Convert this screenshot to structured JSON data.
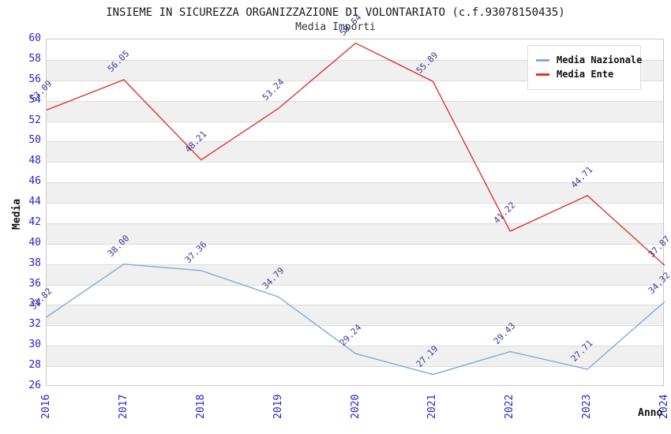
{
  "chart_data": {
    "type": "line",
    "title": "INSIEME IN SICUREZZA ORGANIZZAZIONE DI VOLONTARIATO (c.f.93078150435)",
    "subtitle": "Media Importi",
    "xlabel": "Anno",
    "ylabel": "Media",
    "categories": [
      "2016",
      "2017",
      "2018",
      "2019",
      "2020",
      "2021",
      "2022",
      "2023",
      "2024"
    ],
    "series": [
      {
        "name": "Media Nazionale",
        "color": "#7CACDC",
        "values": [
          32.82,
          38.0,
          37.36,
          34.79,
          29.24,
          27.19,
          29.43,
          27.71,
          34.32
        ]
      },
      {
        "name": "Media Ente",
        "color": "#E23333",
        "values": [
          53.09,
          56.05,
          48.21,
          53.24,
          59.64,
          55.89,
          41.22,
          44.71,
          37.87
        ]
      }
    ],
    "ylim": [
      26,
      60
    ],
    "ytick_step": 2,
    "grid": "horizontal",
    "alternating_bands": true,
    "legend_position": "top-right",
    "point_label_decimals": 2
  },
  "colors": {
    "tick_label": "#2323CE",
    "data_label": "#3A3A96",
    "band_fill": "#F0F0F0",
    "gridline": "#DCDCDC",
    "plot_border": "#C8C8C8",
    "title_text": "#1A1A1A"
  }
}
